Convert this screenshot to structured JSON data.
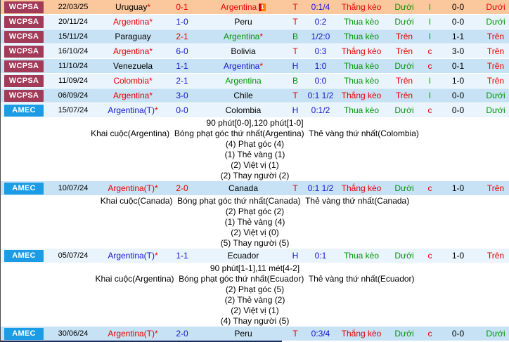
{
  "colors": {
    "red": "#e80000",
    "green": "#009900",
    "blue": "#1515d0",
    "black": "#000000",
    "wcpsa_bg": "#a13b58",
    "amec_bg": "#1b9ce5",
    "row_orange": "#fbc89e",
    "row_light": "#e9f4fd",
    "row_medium": "#c7e2f4"
  },
  "blocks": [
    {
      "type": "row",
      "league": "WCPSA",
      "league_bg": "wcpsa_bg",
      "bg": "row_orange",
      "date": "22/03/25",
      "home": "Uruguay",
      "home_color": "black",
      "home_star": "*",
      "score": "0-1",
      "score_color": "red",
      "away": "Argentina",
      "away_color": "red",
      "away_star": "",
      "card": "1",
      "letter": "T",
      "letter_color": "red",
      "odds": "0:1/4",
      "keo": "Thắng kèo",
      "keo_color": "red",
      "ou1": "Dưới",
      "ou1_color": "green",
      "oe": "l",
      "oe_color": "green",
      "ht": "0-0",
      "ou2": "Dưới",
      "ou2_color": "red"
    },
    {
      "type": "row",
      "league": "WCPSA",
      "league_bg": "wcpsa_bg",
      "bg": "row_light",
      "date": "20/11/24",
      "home": "Argentina",
      "home_color": "red",
      "home_star": "*",
      "score": "1-0",
      "score_color": "blue",
      "away": "Peru",
      "away_color": "black",
      "away_star": "",
      "card": "",
      "letter": "T",
      "letter_color": "red",
      "odds": "0:2",
      "keo": "Thua kèo",
      "keo_color": "green",
      "ou1": "Dưới",
      "ou1_color": "green",
      "oe": "l",
      "oe_color": "green",
      "ht": "0-0",
      "ou2": "Dưới",
      "ou2_color": "green"
    },
    {
      "type": "row",
      "league": "WCPSA",
      "league_bg": "wcpsa_bg",
      "bg": "row_medium",
      "date": "15/11/24",
      "home": "Paraguay",
      "home_color": "black",
      "home_star": "",
      "score": "2-1",
      "score_color": "red",
      "away": "Argentina",
      "away_color": "green",
      "away_star": "*",
      "card": "",
      "letter": "B",
      "letter_color": "green",
      "odds": "1/2:0",
      "keo": "Thua kèo",
      "keo_color": "green",
      "ou1": "Trên",
      "ou1_color": "red",
      "oe": "l",
      "oe_color": "green",
      "ht": "1-1",
      "ou2": "Trên",
      "ou2_color": "red"
    },
    {
      "type": "row",
      "league": "WCPSA",
      "league_bg": "wcpsa_bg",
      "bg": "row_light",
      "date": "16/10/24",
      "home": "Argentina",
      "home_color": "red",
      "home_star": "*",
      "score": "6-0",
      "score_color": "blue",
      "away": "Bolivia",
      "away_color": "black",
      "away_star": "",
      "card": "",
      "letter": "T",
      "letter_color": "red",
      "odds": "0:3",
      "keo": "Thắng kèo",
      "keo_color": "red",
      "ou1": "Trên",
      "ou1_color": "red",
      "oe": "c",
      "oe_color": "red",
      "ht": "3-0",
      "ou2": "Trên",
      "ou2_color": "red"
    },
    {
      "type": "row",
      "league": "WCPSA",
      "league_bg": "wcpsa_bg",
      "bg": "row_medium",
      "date": "11/10/24",
      "home": "Venezuela",
      "home_color": "black",
      "home_star": "",
      "score": "1-1",
      "score_color": "blue",
      "away": "Argentina",
      "away_color": "blue",
      "away_star": "*",
      "card": "",
      "letter": "H",
      "letter_color": "blue",
      "odds": "1:0",
      "keo": "Thua kèo",
      "keo_color": "green",
      "ou1": "Dưới",
      "ou1_color": "green",
      "oe": "c",
      "oe_color": "red",
      "ht": "0-1",
      "ou2": "Trên",
      "ou2_color": "red"
    },
    {
      "type": "row",
      "league": "WCPSA",
      "league_bg": "wcpsa_bg",
      "bg": "row_light",
      "date": "11/09/24",
      "home": "Colombia",
      "home_color": "red",
      "home_star": "*",
      "score": "2-1",
      "score_color": "blue",
      "away": "Argentina",
      "away_color": "green",
      "away_star": "",
      "card": "",
      "letter": "B",
      "letter_color": "green",
      "odds": "0:0",
      "keo": "Thua kèo",
      "keo_color": "green",
      "ou1": "Trên",
      "ou1_color": "red",
      "oe": "l",
      "oe_color": "green",
      "ht": "1-0",
      "ou2": "Trên",
      "ou2_color": "red"
    },
    {
      "type": "row",
      "league": "WCPSA",
      "league_bg": "wcpsa_bg",
      "bg": "row_medium",
      "date": "06/09/24",
      "home": "Argentina",
      "home_color": "red",
      "home_star": "*",
      "score": "3-0",
      "score_color": "blue",
      "away": "Chile",
      "away_color": "black",
      "away_star": "",
      "card": "",
      "letter": "T",
      "letter_color": "red",
      "odds": "0:1 1/2",
      "keo": "Thắng kèo",
      "keo_color": "red",
      "ou1": "Trên",
      "ou1_color": "red",
      "oe": "l",
      "oe_color": "green",
      "ht": "0-0",
      "ou2": "Dưới",
      "ou2_color": "green"
    },
    {
      "type": "row",
      "league": "AMEC",
      "league_bg": "amec_bg",
      "bg": "row_light",
      "date": "15/07/24",
      "home": "Argentina(T)",
      "home_color": "blue",
      "home_star": "*",
      "score": "0-0",
      "score_color": "blue",
      "away": "Colombia",
      "away_color": "black",
      "away_star": "",
      "card": "",
      "letter": "H",
      "letter_color": "blue",
      "odds": "0:1/2",
      "keo": "Thua kèo",
      "keo_color": "green",
      "ou1": "Dưới",
      "ou1_color": "green",
      "oe": "c",
      "oe_color": "red",
      "ht": "0-0",
      "ou2": "Dưới",
      "ou2_color": "green"
    },
    {
      "type": "section",
      "lines": [
        "90 phút[0-0],120 phút[1-0]",
        "Khai cuộc(Argentina)  Bóng phạt góc thứ nhất(Argentina)  Thẻ vàng thứ nhất(Colombia)",
        "(4) Phạt góc (4)",
        "(1) Thẻ vàng (1)",
        "(2) Việt vị (1)",
        "(2) Thay người (2)"
      ]
    },
    {
      "type": "row",
      "league": "AMEC",
      "league_bg": "amec_bg",
      "bg": "row_medium",
      "date": "10/07/24",
      "home": "Argentina(T)",
      "home_color": "red",
      "home_star": "*",
      "score": "2-0",
      "score_color": "red",
      "away": "Canada",
      "away_color": "black",
      "away_star": "",
      "card": "",
      "letter": "T",
      "letter_color": "red",
      "odds": "0:1 1/2",
      "keo": "Thắng kèo",
      "keo_color": "red",
      "ou1": "Dưới",
      "ou1_color": "green",
      "oe": "c",
      "oe_color": "red",
      "ht": "1-0",
      "ou2": "Trên",
      "ou2_color": "red"
    },
    {
      "type": "section",
      "lines": [
        "Khai cuộc(Canada)  Bóng phạt góc thứ nhất(Canada)  Thẻ vàng thứ nhất(Canada)",
        "(2) Phạt góc (2)",
        "(1) Thẻ vàng (4)",
        "(2) Việt vị (0)",
        "(5) Thay người (5)"
      ]
    },
    {
      "type": "row",
      "league": "AMEC",
      "league_bg": "amec_bg",
      "bg": "row_light",
      "date": "05/07/24",
      "home": "Argentina(T)",
      "home_color": "blue",
      "home_star": "*",
      "score": "1-1",
      "score_color": "blue",
      "away": "Ecuador",
      "away_color": "black",
      "away_star": "",
      "card": "",
      "letter": "H",
      "letter_color": "blue",
      "odds": "0:1",
      "keo": "Thua kèo",
      "keo_color": "green",
      "ou1": "Dưới",
      "ou1_color": "green",
      "oe": "c",
      "oe_color": "red",
      "ht": "1-0",
      "ou2": "Trên",
      "ou2_color": "red"
    },
    {
      "type": "section",
      "lines": [
        "90 phút[1-1],11 mét[4-2]",
        "Khai cuộc(Argentina)  Bóng phạt góc thứ nhất(Ecuador)  Thẻ vàng thứ nhất(Ecuador)",
        "(2) Phạt góc (5)",
        "(2) Thẻ vàng (2)",
        "(2) Việt vị (1)",
        "(4) Thay người (5)"
      ]
    },
    {
      "type": "row",
      "league": "AMEC",
      "league_bg": "amec_bg",
      "bg": "row_medium",
      "date": "30/06/24",
      "home": "Argentina(T)",
      "home_color": "red",
      "home_star": "*",
      "score": "2-0",
      "score_color": "blue",
      "away": "Peru",
      "away_color": "black",
      "away_star": "",
      "card": "",
      "letter": "T",
      "letter_color": "red",
      "odds": "0:3/4",
      "keo": "Thắng kèo",
      "keo_color": "red",
      "ou1": "Dưới",
      "ou1_color": "green",
      "oe": "c",
      "oe_color": "red",
      "ht": "0-0",
      "ou2": "Dưới",
      "ou2_color": "green"
    }
  ]
}
